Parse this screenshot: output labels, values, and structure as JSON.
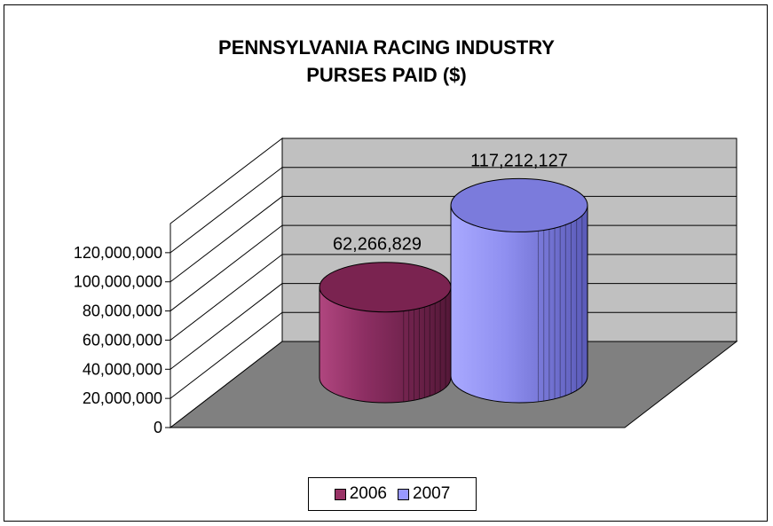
{
  "chart_data": {
    "type": "bar",
    "title": "PENNSYLVANIA RACING INDUSTRY",
    "subtitle": "PURSES PAID ($)",
    "categories": [
      "2006",
      "2007"
    ],
    "values": [
      62266829,
      117212127
    ],
    "data_labels": [
      "62,266,829",
      "117,212,127"
    ],
    "y_ticks": [
      "0",
      "20,000,000",
      "40,000,000",
      "60,000,000",
      "80,000,000",
      "100,000,000",
      "120,000,000"
    ],
    "ylim": [
      0,
      140000000
    ],
    "grid": true,
    "legend_position": "bottom",
    "series_colors": [
      "#993366",
      "#9999ff"
    ],
    "style": "3d-cylinder"
  }
}
